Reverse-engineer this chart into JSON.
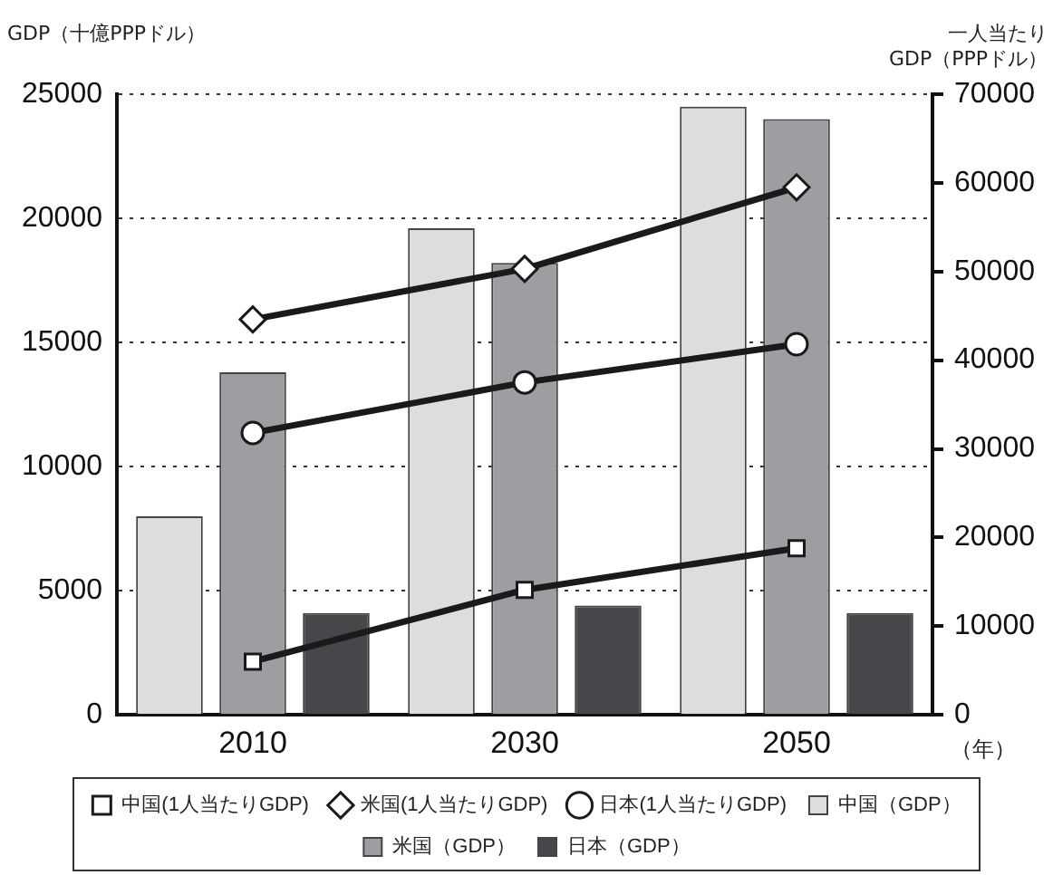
{
  "chart_data": {
    "type": "bar",
    "ylabel": "GDP（十億PPPドル）",
    "y2label": "一人当たり\nGDP（PPPドル）",
    "xlabel": "（年）",
    "categories": [
      "2010",
      "2030",
      "2050"
    ],
    "series": [
      {
        "name": "中国（GDP）",
        "color": "#dcdddf",
        "values": [
          8000,
          19600,
          24500
        ]
      },
      {
        "name": "米国（GDP）",
        "color": "#9d9ea2",
        "values": [
          13800,
          18200,
          24000
        ]
      },
      {
        "name": "日本（GDP）",
        "color": "#45474a",
        "values": [
          4100,
          4400,
          4100
        ]
      },
      {
        "name": "中国(1人当たりGDP)",
        "type": "line",
        "axis": "y2",
        "marker": "square",
        "color": "#1a1a1a",
        "values": [
          6000,
          14100,
          18800
        ]
      },
      {
        "name": "米国(1人当たりGDP)",
        "type": "line",
        "axis": "y2",
        "marker": "diamond",
        "color": "#1a1a1a",
        "values": [
          44600,
          50300,
          59500
        ]
      },
      {
        "name": "日本(1人当たりGDP)",
        "type": "line",
        "axis": "y2",
        "marker": "circle",
        "color": "#1a1a1a",
        "values": [
          31800,
          37500,
          41800
        ]
      }
    ],
    "ylim": [
      0,
      25000
    ],
    "yticks": [
      0,
      5000,
      10000,
      15000,
      20000,
      25000
    ],
    "y2lim": [
      0,
      70000
    ],
    "y2ticks": [
      0,
      10000,
      20000,
      30000,
      40000,
      50000,
      60000,
      70000
    ],
    "grid": "y",
    "legend": "bottom"
  }
}
